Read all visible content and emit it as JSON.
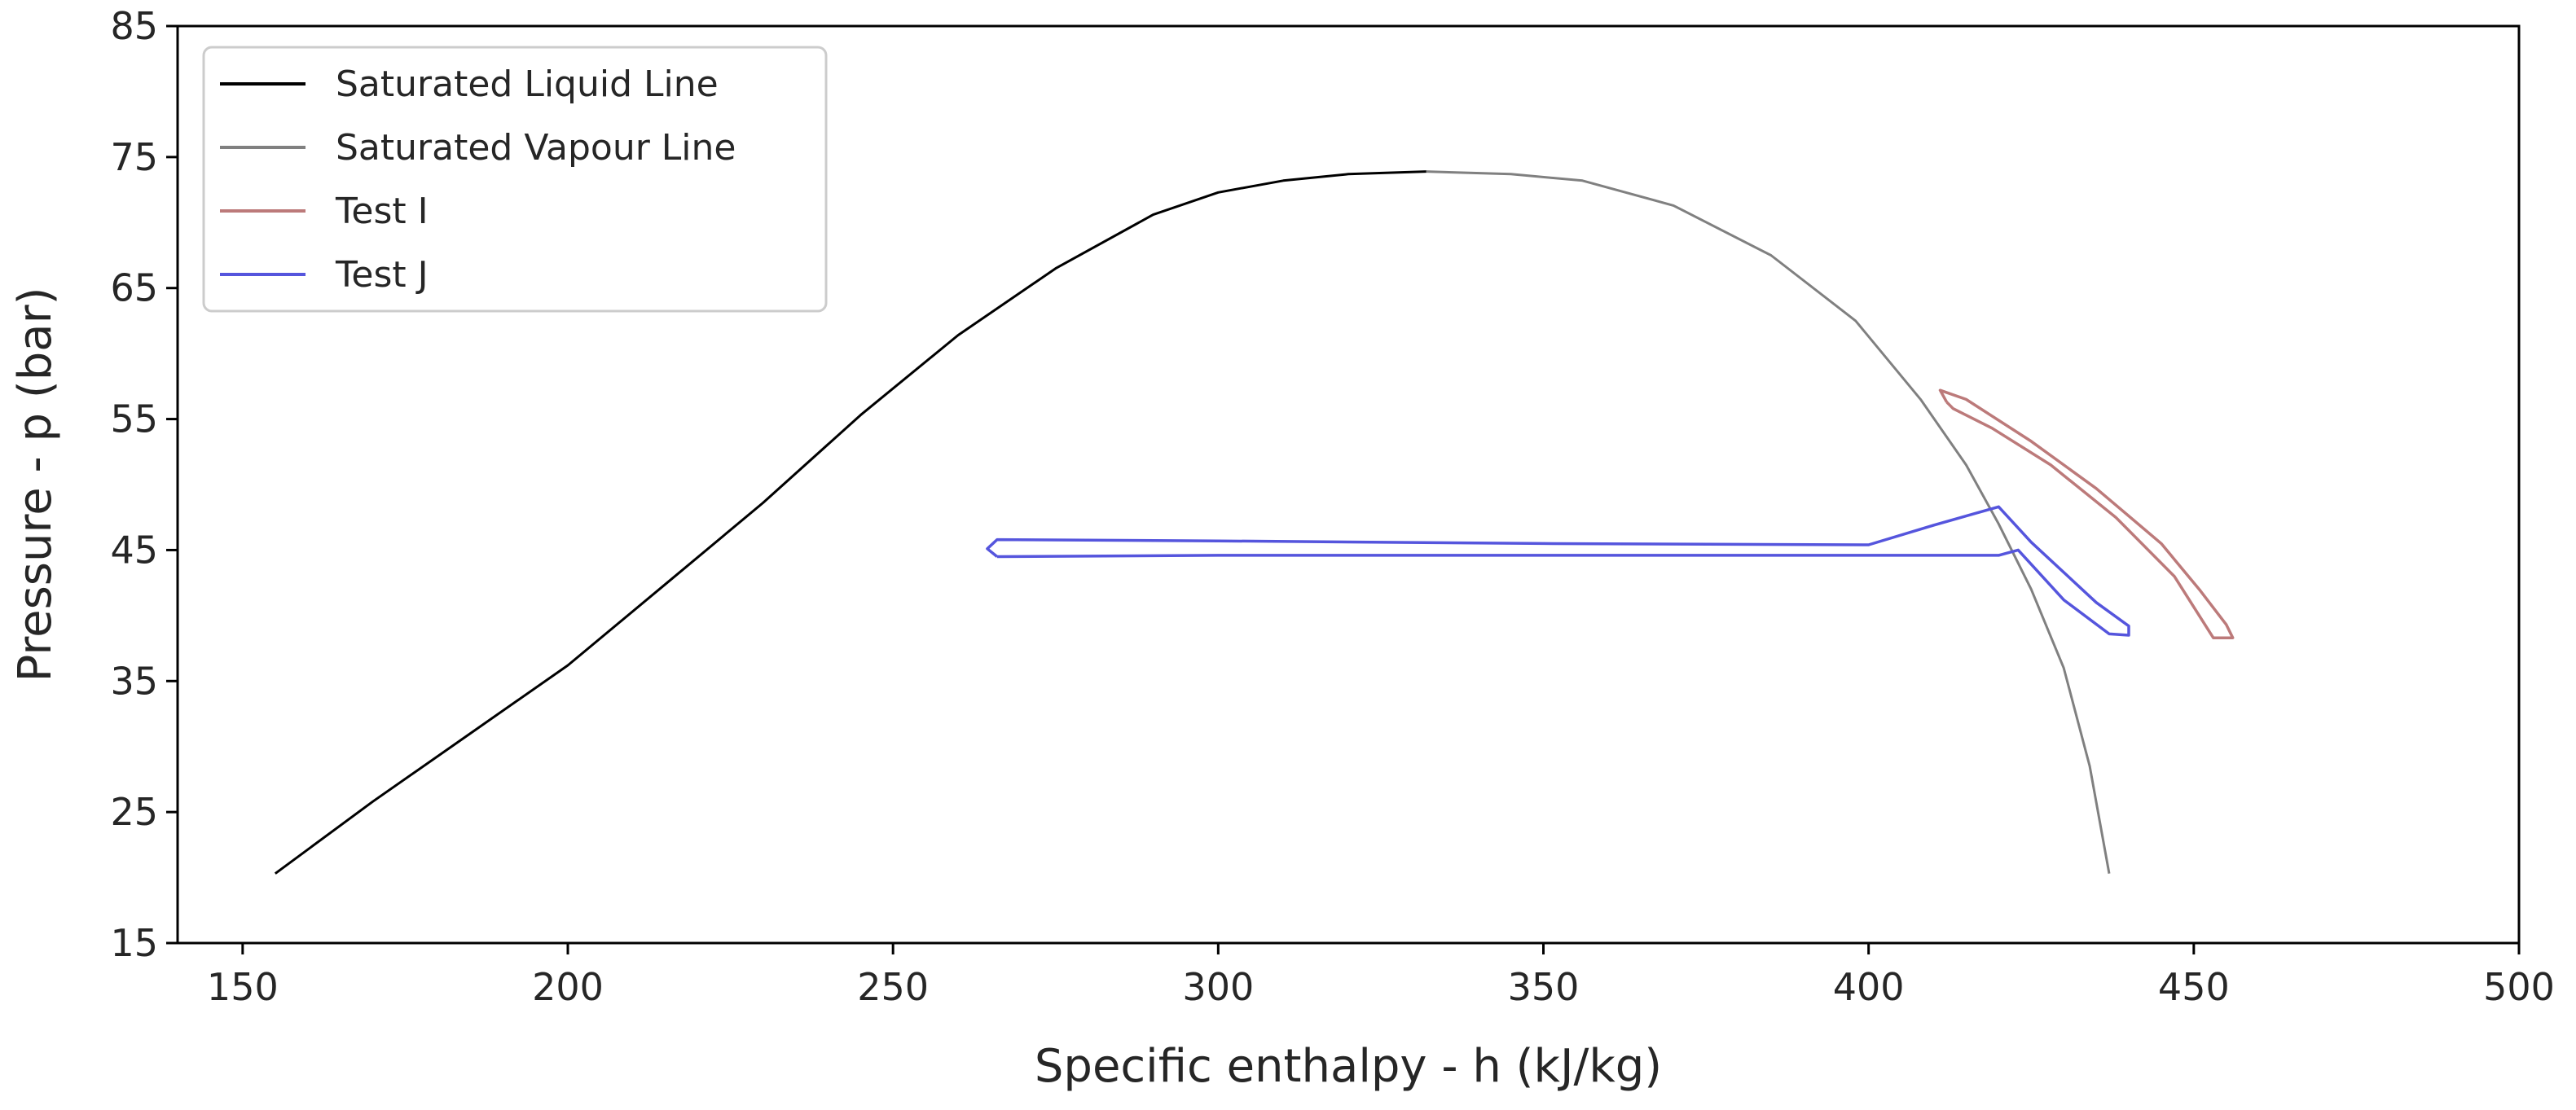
{
  "chart_data": {
    "type": "line",
    "title": "",
    "xlabel": "Specific enthalpy - h (kJ/kg)",
    "ylabel": "Pressure - p (bar)",
    "xlim": [
      140,
      500
    ],
    "ylim": [
      15,
      85
    ],
    "xticks": [
      150,
      200,
      250,
      300,
      350,
      400,
      450,
      500
    ],
    "yticks": [
      15,
      25,
      35,
      45,
      55,
      65,
      75,
      85
    ],
    "grid": false,
    "legend_position": "top-left",
    "series": [
      {
        "name": "Saturated Liquid Line",
        "color": "#000000",
        "x": [
          155,
          170,
          185,
          200,
          215,
          230,
          245,
          260,
          275,
          290,
          300,
          310,
          320,
          332
        ],
        "y": [
          20.3,
          25.8,
          31.0,
          36.2,
          42.4,
          48.6,
          55.3,
          61.4,
          66.5,
          70.6,
          72.3,
          73.2,
          73.7,
          73.9
        ]
      },
      {
        "name": "Saturated Vapour Line",
        "color": "#808080",
        "x": [
          332,
          345,
          356,
          370,
          385,
          398,
          408,
          415,
          420,
          425,
          430,
          434,
          437
        ],
        "y": [
          73.9,
          73.7,
          73.2,
          71.3,
          67.5,
          62.5,
          56.5,
          51.5,
          47.0,
          42.0,
          36.0,
          28.5,
          20.3
        ]
      },
      {
        "name": "Test I",
        "color": "#bc7a7a",
        "x": [
          412,
          411,
          415,
          425,
          435,
          445,
          451,
          455,
          456,
          453,
          447,
          438,
          428,
          419,
          413,
          412
        ],
        "y": [
          56.3,
          57.2,
          56.5,
          53.3,
          49.7,
          45.5,
          41.9,
          39.3,
          38.3,
          38.3,
          43.0,
          47.5,
          51.5,
          54.3,
          55.8,
          56.3
        ]
      },
      {
        "name": "Test J",
        "color": "#5555dd",
        "x": [
          266,
          264.5,
          266,
          300,
          350,
          400,
          410,
          420,
          425,
          435,
          440,
          440,
          437,
          430,
          423,
          420,
          400,
          350,
          300,
          266
        ],
        "y": [
          44.5,
          45.1,
          45.8,
          45.7,
          45.5,
          45.4,
          46.9,
          48.3,
          45.6,
          41.0,
          39.2,
          38.5,
          38.6,
          41.2,
          45.0,
          44.6,
          44.6,
          44.6,
          44.6,
          44.5
        ]
      }
    ]
  }
}
